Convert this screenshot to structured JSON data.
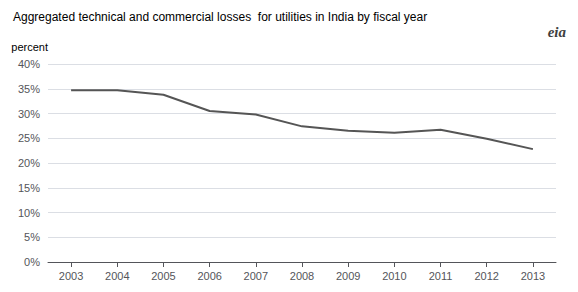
{
  "chart_data": {
    "type": "line",
    "title": "Aggregated technical and commercial losses  for utilities in India by fiscal year",
    "y_label": "percent",
    "annotations": [
      "eia"
    ],
    "x": [
      2003,
      2004,
      2005,
      2006,
      2007,
      2008,
      2009,
      2010,
      2011,
      2012,
      2013
    ],
    "values": [
      0.347,
      0.347,
      0.338,
      0.305,
      0.298,
      0.274,
      0.265,
      0.261,
      0.267,
      0.249,
      0.228
    ],
    "color": "#555555",
    "xlim": [
      2002.5,
      2013.5
    ],
    "xticks": [
      2003,
      2004,
      2005,
      2006,
      2007,
      2008,
      2009,
      2010,
      2011,
      2012,
      2013
    ],
    "ylim": [
      0,
      0.4
    ],
    "yticks": [
      {
        "value": 0.0,
        "label": "0%"
      },
      {
        "value": 0.05,
        "label": "5%"
      },
      {
        "value": 0.1,
        "label": "10%"
      },
      {
        "value": 0.15,
        "label": "15%"
      },
      {
        "value": 0.2,
        "label": "20%"
      },
      {
        "value": 0.25,
        "label": "25%"
      },
      {
        "value": 0.3,
        "label": "30%"
      },
      {
        "value": 0.35,
        "label": "35%"
      },
      {
        "value": 0.4,
        "label": "40%"
      }
    ],
    "grid": true
  }
}
